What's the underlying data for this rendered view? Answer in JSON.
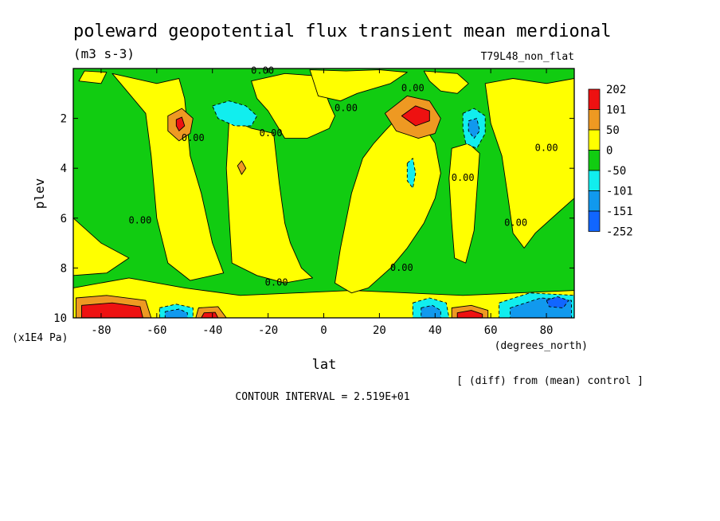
{
  "chart_data": {
    "type": "heatmap",
    "title": "poleward geopotential flux transient mean merdional",
    "units": "(m3 s-3)",
    "run_label": "T79L48_non_flat",
    "xlabel": "lat",
    "x_units": "(degrees_north)",
    "ylabel": "plev",
    "y_units": "(x1E4 Pa)",
    "xlim": [
      -90,
      90
    ],
    "ylim": [
      10,
      0
    ],
    "x_ticks": [
      -80,
      -60,
      -40,
      -20,
      0,
      20,
      40,
      60,
      80
    ],
    "y_ticks": [
      2,
      4,
      6,
      8,
      10
    ],
    "contour_interval_text": "CONTOUR INTERVAL = 2.519E+01",
    "diff_note": "[ (diff) from (mean) control ]",
    "contour_label": "0.00",
    "zero_label_points": [
      {
        "x": -22,
        "y": 0.1
      },
      {
        "x": 32,
        "y": 0.8
      },
      {
        "x": 8,
        "y": 1.6
      },
      {
        "x": -47,
        "y": 2.8
      },
      {
        "x": -19,
        "y": 2.6
      },
      {
        "x": 80,
        "y": 3.2
      },
      {
        "x": 50,
        "y": 4.4
      },
      {
        "x": -66,
        "y": 6.1
      },
      {
        "x": 69,
        "y": 6.2
      },
      {
        "x": 28,
        "y": 8.0
      },
      {
        "x": -17,
        "y": 8.6
      }
    ],
    "colorbar": {
      "labels": [
        "202",
        "101",
        "50",
        "0",
        "-50",
        "-101",
        "-151",
        "-252"
      ],
      "colors": [
        "#ee1111",
        "#ee9922",
        "#ffff00",
        "#11cc11",
        "#11eeee",
        "#1199ee",
        "#1166ff"
      ]
    },
    "regions": [
      {
        "value": 50,
        "color": "#ffff00",
        "points": [
          [
            -90,
            8.8
          ],
          [
            -70,
            8.4
          ],
          [
            -50,
            8.8
          ],
          [
            -30,
            9.1
          ],
          [
            -10,
            9.0
          ],
          [
            10,
            8.9
          ],
          [
            30,
            9.0
          ],
          [
            50,
            9.1
          ],
          [
            70,
            9.0
          ],
          [
            90,
            8.9
          ],
          [
            90,
            10
          ],
          [
            -90,
            10
          ]
        ]
      },
      {
        "value": 120,
        "color": "#ee9922",
        "points": [
          [
            -89,
            9.2
          ],
          [
            -78,
            9.1
          ],
          [
            -64,
            9.3
          ],
          [
            -62,
            10
          ],
          [
            -89,
            10
          ]
        ]
      },
      {
        "value": 220,
        "color": "#ee1111",
        "points": [
          [
            -87,
            9.5
          ],
          [
            -76,
            9.4
          ],
          [
            -66,
            9.55
          ],
          [
            -65,
            10
          ],
          [
            -87,
            10
          ]
        ]
      },
      {
        "value": 120,
        "color": "#ee9922",
        "points": [
          [
            -45,
            9.6
          ],
          [
            -38,
            9.55
          ],
          [
            -35,
            10
          ],
          [
            -46,
            10
          ]
        ]
      },
      {
        "value": 220,
        "color": "#ee1111",
        "points": [
          [
            -43,
            9.8
          ],
          [
            -39,
            9.78
          ],
          [
            -38,
            10
          ],
          [
            -44,
            10
          ]
        ]
      },
      {
        "value": 120,
        "color": "#ee9922",
        "points": [
          [
            46,
            9.6
          ],
          [
            53,
            9.5
          ],
          [
            59,
            9.7
          ],
          [
            59,
            10
          ],
          [
            46,
            10
          ]
        ]
      },
      {
        "value": 220,
        "color": "#ee1111",
        "points": [
          [
            48,
            9.8
          ],
          [
            53,
            9.7
          ],
          [
            57,
            9.85
          ],
          [
            57,
            10
          ],
          [
            48,
            10
          ]
        ]
      },
      {
        "value": -75,
        "color": "#11eeee",
        "points": [
          [
            -59,
            9.6
          ],
          [
            -53,
            9.45
          ],
          [
            -47,
            9.6
          ],
          [
            -47,
            10
          ],
          [
            -59,
            10
          ]
        ]
      },
      {
        "value": -125,
        "color": "#1199ee",
        "points": [
          [
            -57,
            9.75
          ],
          [
            -52,
            9.65
          ],
          [
            -49,
            9.8
          ],
          [
            -49,
            10
          ],
          [
            -57,
            10
          ]
        ]
      },
      {
        "value": -75,
        "color": "#11eeee",
        "points": [
          [
            32,
            9.4
          ],
          [
            38,
            9.2
          ],
          [
            44,
            9.4
          ],
          [
            45,
            10
          ],
          [
            32,
            10
          ]
        ]
      },
      {
        "value": -125,
        "color": "#1199ee",
        "points": [
          [
            35,
            9.6
          ],
          [
            39,
            9.5
          ],
          [
            42,
            9.7
          ],
          [
            42,
            10
          ],
          [
            35,
            10
          ]
        ]
      },
      {
        "value": -75,
        "color": "#11eeee",
        "points": [
          [
            63,
            9.4
          ],
          [
            74,
            9.0
          ],
          [
            90,
            9.1
          ],
          [
            90,
            10
          ],
          [
            63,
            10
          ]
        ]
      },
      {
        "value": -125,
        "color": "#1199ee",
        "points": [
          [
            67,
            9.6
          ],
          [
            78,
            9.2
          ],
          [
            89,
            9.3
          ],
          [
            89,
            10
          ],
          [
            67,
            10
          ]
        ]
      },
      {
        "value": -160,
        "color": "#1166ff",
        "points": [
          [
            80,
            9.3
          ],
          [
            84,
            9.15
          ],
          [
            88,
            9.3
          ],
          [
            86,
            9.6
          ],
          [
            81,
            9.55
          ]
        ]
      },
      {
        "value": 50,
        "color": "#ffff00",
        "points": [
          [
            -76,
            0.2
          ],
          [
            -60,
            0.6
          ],
          [
            -52,
            0.4
          ],
          [
            -50,
            1.2
          ],
          [
            -48,
            3.5
          ],
          [
            -44,
            5.0
          ],
          [
            -40,
            7.0
          ],
          [
            -36,
            8.2
          ],
          [
            -48,
            8.5
          ],
          [
            -56,
            7.8
          ],
          [
            -60,
            6.0
          ],
          [
            -62,
            3.5
          ],
          [
            -64,
            1.8
          ],
          [
            -70,
            1.0
          ]
        ]
      },
      {
        "value": 50,
        "color": "#ffff00",
        "points": [
          [
            -90,
            6.0
          ],
          [
            -80,
            7.0
          ],
          [
            -70,
            7.6
          ],
          [
            -78,
            8.2
          ],
          [
            -90,
            8.3
          ]
        ]
      },
      {
        "value": 50,
        "color": "#ffff00",
        "points": [
          [
            -34,
            2.0
          ],
          [
            -26,
            2.4
          ],
          [
            -18,
            2.6
          ],
          [
            -16,
            4.6
          ],
          [
            -14,
            6.2
          ],
          [
            -12,
            7.0
          ],
          [
            -8,
            8.0
          ],
          [
            -4,
            8.4
          ],
          [
            -14,
            8.6
          ],
          [
            -24,
            8.3
          ],
          [
            -33,
            7.8
          ],
          [
            -34,
            6.0
          ],
          [
            -35,
            4.0
          ]
        ]
      },
      {
        "value": 50,
        "color": "#ffff00",
        "points": [
          [
            -26,
            0.5
          ],
          [
            -14,
            0.2
          ],
          [
            -2,
            0.3
          ],
          [
            0,
            0.8
          ],
          [
            2,
            1.4
          ],
          [
            4,
            1.9
          ],
          [
            2,
            2.4
          ],
          [
            -6,
            2.8
          ],
          [
            -14,
            2.8
          ],
          [
            -20,
            1.7
          ],
          [
            -24,
            1.2
          ]
        ]
      },
      {
        "value": 50,
        "color": "#ffff00",
        "points": [
          [
            -5,
            0.05
          ],
          [
            8,
            0.1
          ],
          [
            20,
            0.05
          ],
          [
            30,
            0.15
          ],
          [
            24,
            0.6
          ],
          [
            12,
            1.0
          ],
          [
            6,
            1.3
          ],
          [
            -2,
            1.1
          ]
        ]
      },
      {
        "value": 50,
        "color": "#ffff00",
        "points": [
          [
            -86,
            0.1
          ],
          [
            -78,
            0.15
          ],
          [
            -80,
            0.6
          ],
          [
            -88,
            0.5
          ]
        ]
      },
      {
        "value": 50,
        "color": "#ffff00",
        "points": [
          [
            36,
            0.1
          ],
          [
            48,
            0.2
          ],
          [
            52,
            0.6
          ],
          [
            48,
            1.0
          ],
          [
            42,
            0.9
          ],
          [
            38,
            0.5
          ]
        ]
      },
      {
        "value": 50,
        "color": "#ffff00",
        "points": [
          [
            22,
            2.5
          ],
          [
            28,
            1.8
          ],
          [
            36,
            2.3
          ],
          [
            40,
            3.0
          ],
          [
            42,
            4.2
          ],
          [
            40,
            5.2
          ],
          [
            36,
            6.2
          ],
          [
            30,
            7.2
          ],
          [
            24,
            8.0
          ],
          [
            16,
            8.8
          ],
          [
            10,
            9.0
          ],
          [
            4,
            8.6
          ],
          [
            6,
            7.2
          ],
          [
            10,
            5.0
          ],
          [
            14,
            3.6
          ],
          [
            18,
            3.0
          ]
        ]
      },
      {
        "value": 50,
        "color": "#ffff00",
        "points": [
          [
            58,
            0.6
          ],
          [
            68,
            0.4
          ],
          [
            80,
            0.6
          ],
          [
            90,
            0.4
          ],
          [
            90,
            5.2
          ],
          [
            84,
            5.8
          ],
          [
            76,
            6.6
          ],
          [
            72,
            7.2
          ],
          [
            68,
            6.6
          ],
          [
            66,
            5.0
          ],
          [
            64,
            3.5
          ],
          [
            60,
            2.2
          ]
        ]
      },
      {
        "value": 50,
        "color": "#ffff00",
        "points": [
          [
            46,
            3.2
          ],
          [
            52,
            3.0
          ],
          [
            56,
            3.4
          ],
          [
            54,
            6.5
          ],
          [
            51,
            7.8
          ],
          [
            47,
            7.6
          ],
          [
            46,
            6.2
          ],
          [
            45,
            4.4
          ]
        ]
      },
      {
        "value": 120,
        "color": "#ee9922",
        "points": [
          [
            -56,
            1.9
          ],
          [
            -51,
            1.6
          ],
          [
            -47,
            2.0
          ],
          [
            -48,
            2.6
          ],
          [
            -52,
            2.9
          ],
          [
            -56,
            2.5
          ]
        ]
      },
      {
        "value": 220,
        "color": "#ee1111",
        "points": [
          [
            -53,
            2.05
          ],
          [
            -51,
            1.95
          ],
          [
            -50,
            2.3
          ],
          [
            -52,
            2.5
          ],
          [
            -53,
            2.3
          ]
        ]
      },
      {
        "value": 120,
        "color": "#ee9922",
        "points": [
          [
            -31,
            3.9
          ],
          [
            -29.5,
            3.7
          ],
          [
            -28,
            4.0
          ],
          [
            -29.5,
            4.25
          ]
        ]
      },
      {
        "value": 120,
        "color": "#ee9922",
        "points": [
          [
            22,
            1.8
          ],
          [
            30,
            1.1
          ],
          [
            38,
            1.3
          ],
          [
            42,
            2.0
          ],
          [
            40,
            2.6
          ],
          [
            34,
            2.8
          ],
          [
            26,
            2.5
          ]
        ]
      },
      {
        "value": 220,
        "color": "#ee1111",
        "points": [
          [
            28,
            1.9
          ],
          [
            33,
            1.5
          ],
          [
            38,
            1.7
          ],
          [
            38,
            2.1
          ],
          [
            33,
            2.3
          ]
        ]
      },
      {
        "value": -75,
        "color": "#11eeee",
        "points": [
          [
            -40,
            1.5
          ],
          [
            -34,
            1.3
          ],
          [
            -28,
            1.5
          ],
          [
            -24,
            1.9
          ],
          [
            -26,
            2.3
          ],
          [
            -32,
            2.3
          ],
          [
            -38,
            2.0
          ]
        ]
      },
      {
        "value": -75,
        "color": "#11eeee",
        "points": [
          [
            50,
            1.8
          ],
          [
            54,
            1.6
          ],
          [
            58,
            1.9
          ],
          [
            58,
            2.6
          ],
          [
            55,
            3.2
          ],
          [
            51,
            3.0
          ],
          [
            50,
            2.4
          ]
        ]
      },
      {
        "value": -125,
        "color": "#1199ee",
        "points": [
          [
            52,
            2.1
          ],
          [
            55,
            2.0
          ],
          [
            56,
            2.5
          ],
          [
            54,
            2.8
          ],
          [
            52,
            2.5
          ]
        ]
      },
      {
        "value": -75,
        "color": "#11eeee",
        "points": [
          [
            30,
            3.8
          ],
          [
            32,
            3.6
          ],
          [
            33,
            4.2
          ],
          [
            32,
            4.8
          ],
          [
            30,
            4.5
          ]
        ]
      }
    ]
  }
}
